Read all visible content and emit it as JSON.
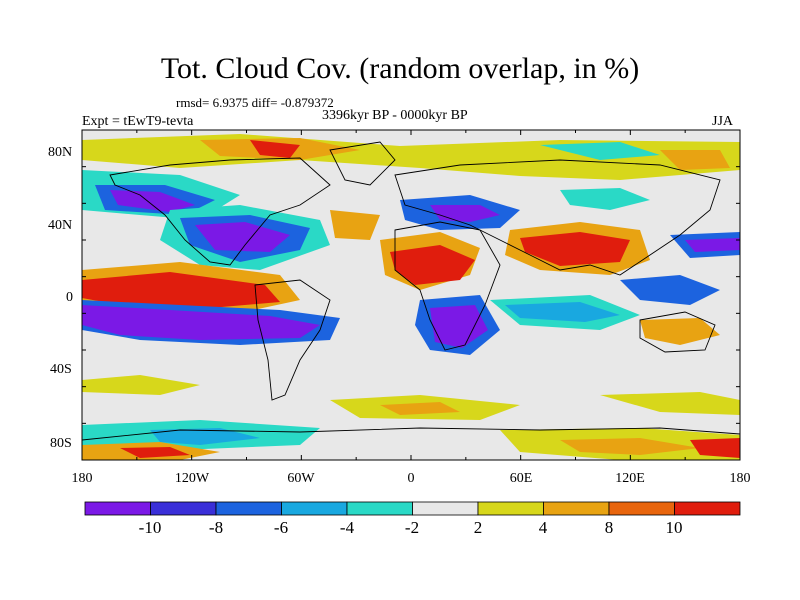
{
  "title": "Tot. Cloud Cov. (random overlap, in %)",
  "stats": "rmsd= 6.9375 diff= -0.879372",
  "period": "3396kyr BP - 0000kyr BP",
  "experiment": "Expt = tEwT9-tevta",
  "season": "JJA",
  "lat_ticks": [
    "80N",
    "40N",
    "0",
    "40S",
    "80S"
  ],
  "lon_ticks": [
    "180",
    "120W",
    "60W",
    "0",
    "60E",
    "120E",
    "180"
  ],
  "colorbar": {
    "labels": [
      "-10",
      "-8",
      "-6",
      "-4",
      "-2",
      "2",
      "4",
      "8",
      "10"
    ],
    "colors": [
      "#7b19e6",
      "#3a2fd8",
      "#1c63df",
      "#19a8e0",
      "#2ad9c6",
      "#e8e8e8",
      "#d7d71b",
      "#e8a312",
      "#e8650d",
      "#e01d0d"
    ]
  }
}
